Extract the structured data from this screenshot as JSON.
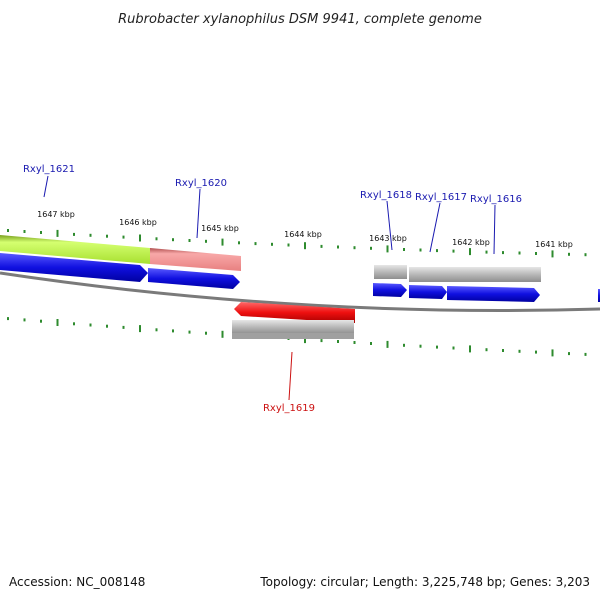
{
  "title": "Rubrobacter xylanophilus DSM 9941, complete genome",
  "footer": {
    "accession": "Accession: NC_008148",
    "summary": "Topology: circular; Length: 3,225,748 bp; Genes: 3,203"
  },
  "colors": {
    "backbone": "#7a7a7a",
    "tick": "#2e8b2e",
    "label_blue": "#1a1ab0",
    "label_red": "#cc1111",
    "green_feature": "#b8f040",
    "pink_feature": "#f08888",
    "blue_gene": "#1010e0",
    "red_gene": "#ee1010",
    "grey_feature": "#b8b8b8"
  },
  "ticks": [
    {
      "label": "1647 kbp"
    },
    {
      "label": "1646 kbp"
    },
    {
      "label": "1645 kbp"
    },
    {
      "label": "1644 kbp"
    },
    {
      "label": "1643 kbp"
    },
    {
      "label": "1642 kbp"
    },
    {
      "label": "1641 kbp"
    }
  ],
  "genes": [
    {
      "label": "Rxyl_1621",
      "color": "blue"
    },
    {
      "label": "Rxyl_1620",
      "color": "blue"
    },
    {
      "label": "Rxyl_1618",
      "color": "blue"
    },
    {
      "label": "Rxyl_1617",
      "color": "blue"
    },
    {
      "label": "Rxyl_1616",
      "color": "blue"
    },
    {
      "label": "Rxyl_1619",
      "color": "red"
    }
  ]
}
